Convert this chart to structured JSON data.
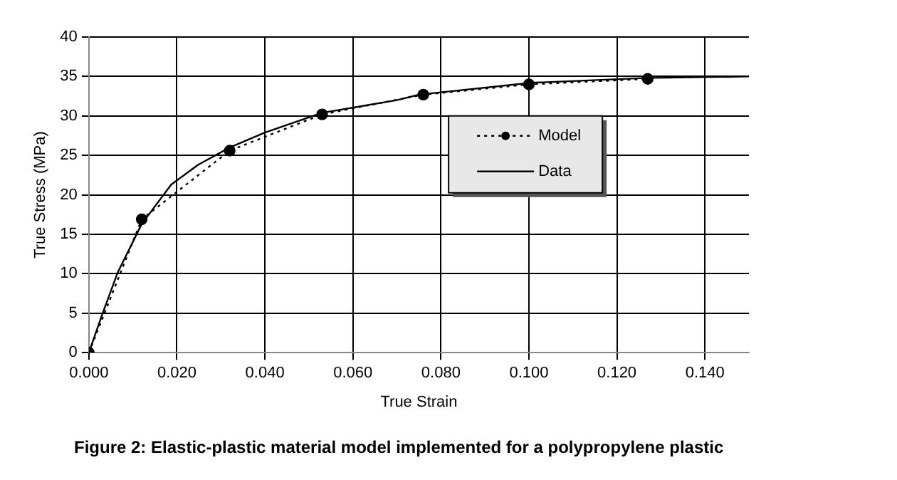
{
  "chart_data": {
    "type": "line",
    "title": "Figure 2: Elastic-plastic material model implemented for a polypropylene plastic",
    "xlabel": "True Strain",
    "ylabel": "True Stress (MPa)",
    "series": [
      {
        "name": "Model",
        "color": "#000000",
        "line_style": "dotted",
        "marker": "circle",
        "x": [
          0,
          0.012,
          0.032,
          0.053,
          0.076,
          0.1,
          0.127
        ],
        "values": [
          0,
          16.9,
          25.6,
          30.2,
          32.7,
          34.0,
          34.7
        ]
      },
      {
        "name": "Data",
        "color": "#000000",
        "line_style": "solid",
        "marker": "none",
        "x": [
          0,
          0.0028,
          0.0065,
          0.012,
          0.0187,
          0.0248,
          0.032,
          0.04,
          0.053,
          0.07,
          0.075,
          0.1005,
          0.126,
          0.15
        ],
        "values": [
          0,
          4.5,
          10.1,
          16.3,
          21.3,
          23.8,
          26.0,
          27.9,
          30.4,
          32.0,
          32.7,
          34.2,
          34.8,
          35.0
        ]
      }
    ],
    "xlim": [
      0,
      0.15
    ],
    "xticks": [
      {
        "value": 0,
        "label": "0.000"
      },
      {
        "value": 0.02,
        "label": "0.020"
      },
      {
        "value": 0.04,
        "label": "0.040"
      },
      {
        "value": 0.06,
        "label": "0.060"
      },
      {
        "value": 0.08,
        "label": "0.080"
      },
      {
        "value": 0.1,
        "label": "0.100"
      },
      {
        "value": 0.12,
        "label": "0.120"
      },
      {
        "value": 0.14,
        "label": "0.140"
      }
    ],
    "ylim": [
      0,
      40
    ],
    "yticks": [
      0,
      5,
      10,
      15,
      20,
      25,
      30,
      35,
      40
    ],
    "grid": true,
    "legend": "right"
  }
}
